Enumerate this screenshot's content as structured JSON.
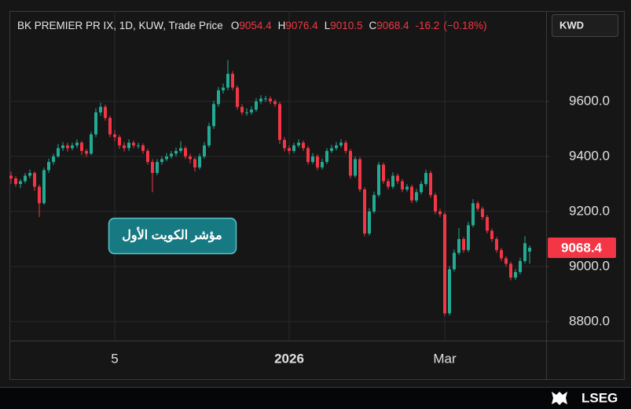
{
  "chart_data": {
    "type": "candlestick",
    "title": "BK PREMIER PR IX, 1D, KUW, Trade Price",
    "ohlc_letters": [
      "O",
      "H",
      "L",
      "C"
    ],
    "change": -16.2,
    "change_pct_label": "(−0.18%)",
    "currency": "KWD",
    "annotation": "مؤشر الكويت الأول",
    "up_color": "#22ab94",
    "down_color": "#f23645",
    "grid": true,
    "ylim": [
      8734,
      9911
    ],
    "yticks": [
      {
        "value": 8800,
        "label": "8800.0"
      },
      {
        "value": 9000,
        "label": "9000.0"
      },
      {
        "value": 9200,
        "label": "9200.0"
      },
      {
        "value": 9400,
        "label": "9400.0"
      },
      {
        "value": 9600,
        "label": "9600.0"
      }
    ],
    "categories": [
      null,
      null,
      null,
      null,
      null,
      null,
      null,
      null,
      null,
      null,
      null,
      null,
      null,
      null,
      null,
      null,
      null,
      null,
      null,
      null,
      null,
      null,
      "5",
      null,
      null,
      null,
      null,
      null,
      null,
      null,
      null,
      null,
      null,
      null,
      null,
      null,
      null,
      null,
      null,
      null,
      null,
      null,
      null,
      null,
      null,
      null,
      null,
      null,
      null,
      null,
      null,
      null,
      null,
      null,
      null,
      null,
      null,
      null,
      null,
      "2026",
      null,
      null,
      null,
      null,
      null,
      null,
      null,
      null,
      null,
      null,
      null,
      null,
      null,
      null,
      null,
      null,
      null,
      null,
      null,
      null,
      null,
      null,
      null,
      null,
      null,
      null,
      null,
      null,
      null,
      null,
      null,
      null,
      "Mar",
      null,
      null,
      null,
      null,
      null,
      null,
      null,
      null,
      null,
      null,
      null,
      null,
      null,
      null,
      null,
      null,
      null,
      null
    ],
    "open": [
      9330,
      9320,
      9300,
      9310,
      9330,
      9340,
      9290,
      9230,
      9350,
      9380,
      9400,
      9430,
      9440,
      9430,
      9440,
      9450,
      9420,
      9410,
      9480,
      9560,
      9580,
      9540,
      9480,
      9470,
      9440,
      9430,
      9450,
      9440,
      9440,
      9420,
      9380,
      9340,
      9380,
      9390,
      9400,
      9410,
      9420,
      9430,
      9400,
      9390,
      9360,
      9400,
      9440,
      9510,
      9590,
      9640,
      9650,
      9700,
      9650,
      9580,
      9560,
      9560,
      9570,
      9600,
      9610,
      9610,
      9600,
      9590,
      9460,
      9430,
      9420,
      9440,
      9450,
      9430,
      9380,
      9400,
      9360,
      9380,
      9420,
      9430,
      9440,
      9450,
      9420,
      9330,
      9390,
      9280,
      9120,
      9200,
      9260,
      9370,
      9310,
      9290,
      9330,
      9310,
      9280,
      9290,
      9240,
      9270,
      9300,
      9340,
      9260,
      9200,
      9190,
      8830,
      8990,
      9050,
      9100,
      9060,
      9150,
      9230,
      9210,
      9180,
      9130,
      9100,
      9060,
      9030,
      9010,
      8960,
      8980,
      9020,
      9054.4
    ],
    "high": [
      9345,
      9328,
      9318,
      9340,
      9352,
      9345,
      9298,
      9360,
      9392,
      9410,
      9445,
      9452,
      9450,
      9450,
      9462,
      9456,
      9428,
      9490,
      9575,
      9595,
      9588,
      9548,
      9495,
      9478,
      9452,
      9462,
      9458,
      9450,
      9448,
      9428,
      9390,
      9390,
      9400,
      9412,
      9420,
      9432,
      9455,
      9438,
      9410,
      9398,
      9410,
      9452,
      9522,
      9602,
      9652,
      9665,
      9750,
      9710,
      9658,
      9590,
      9575,
      9582,
      9612,
      9622,
      9620,
      9618,
      9608,
      9598,
      9470,
      9440,
      9450,
      9462,
      9458,
      9438,
      9412,
      9408,
      9392,
      9430,
      9442,
      9452,
      9462,
      9458,
      9428,
      9400,
      9398,
      9288,
      9212,
      9272,
      9380,
      9378,
      9320,
      9342,
      9338,
      9318,
      9300,
      9298,
      9282,
      9310,
      9352,
      9348,
      9268,
      9210,
      9198,
      9002,
      9062,
      9140,
      9108,
      9162,
      9245,
      9238,
      9218,
      9188,
      9138,
      9108,
      9068,
      9038,
      9018,
      8992,
      9032,
      9110,
      9076.4
    ],
    "low": [
      9300,
      9290,
      9285,
      9302,
      9320,
      9275,
      9180,
      9225,
      9340,
      9370,
      9395,
      9420,
      9418,
      9422,
      9430,
      9405,
      9398,
      9405,
      9470,
      9548,
      9530,
      9470,
      9455,
      9428,
      9418,
      9420,
      9430,
      9428,
      9410,
      9370,
      9270,
      9332,
      9370,
      9382,
      9392,
      9400,
      9412,
      9390,
      9375,
      9345,
      9352,
      9392,
      9432,
      9500,
      9580,
      9628,
      9640,
      9640,
      9570,
      9550,
      9548,
      9552,
      9562,
      9590,
      9598,
      9590,
      9580,
      9445,
      9418,
      9408,
      9412,
      9432,
      9420,
      9370,
      9372,
      9350,
      9352,
      9372,
      9412,
      9422,
      9432,
      9410,
      9320,
      9322,
      9270,
      9110,
      9112,
      9192,
      9252,
      9300,
      9280,
      9282,
      9300,
      9270,
      9272,
      9230,
      9232,
      9262,
      9292,
      9250,
      9190,
      9180,
      8820,
      8822,
      8982,
      9042,
      9050,
      9052,
      9142,
      9200,
      9170,
      9120,
      9090,
      9050,
      9020,
      9000,
      8950,
      8952,
      8972,
      9012,
      9010.5
    ],
    "close": [
      9320,
      9300,
      9310,
      9330,
      9340,
      9290,
      9230,
      9350,
      9380,
      9400,
      9430,
      9440,
      9430,
      9440,
      9450,
      9420,
      9410,
      9480,
      9560,
      9580,
      9540,
      9480,
      9470,
      9440,
      9430,
      9450,
      9440,
      9440,
      9420,
      9380,
      9340,
      9380,
      9390,
      9400,
      9410,
      9420,
      9430,
      9400,
      9390,
      9360,
      9400,
      9440,
      9510,
      9590,
      9640,
      9650,
      9700,
      9650,
      9580,
      9560,
      9560,
      9570,
      9600,
      9610,
      9610,
      9600,
      9590,
      9460,
      9430,
      9420,
      9440,
      9450,
      9430,
      9380,
      9400,
      9360,
      9380,
      9420,
      9430,
      9440,
      9450,
      9420,
      9330,
      9390,
      9280,
      9120,
      9200,
      9260,
      9370,
      9310,
      9290,
      9330,
      9310,
      9280,
      9290,
      9240,
      9270,
      9300,
      9340,
      9260,
      9200,
      9190,
      8830,
      8990,
      9050,
      9100,
      9060,
      9150,
      9230,
      9210,
      9180,
      9130,
      9100,
      9060,
      9030,
      9010,
      8960,
      8980,
      9020,
      9084.6,
      9068.4
    ]
  },
  "footer": {
    "brand": "LSEG"
  }
}
